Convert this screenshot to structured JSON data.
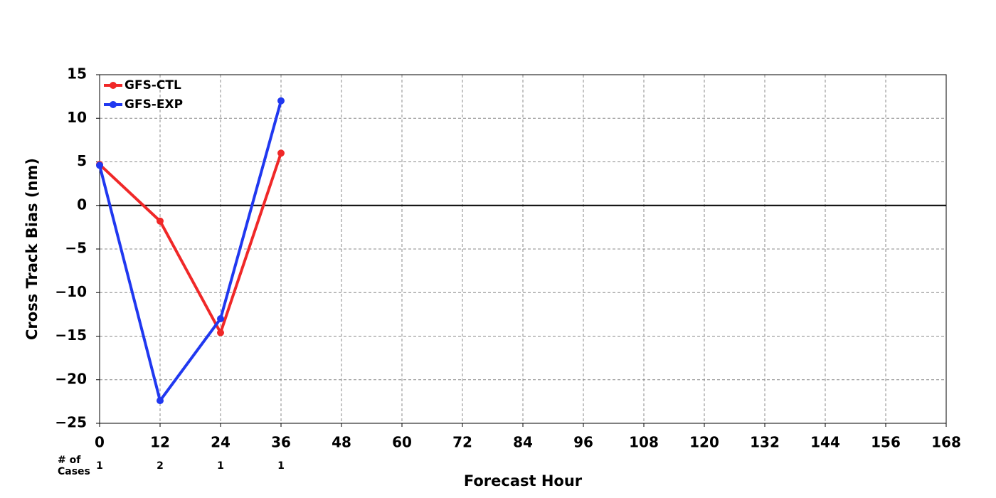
{
  "chart_data": {
    "type": "line",
    "xlabel": "Forecast Hour",
    "ylabel": "Cross Track Bias (nm)",
    "x": [
      0,
      12,
      24,
      36
    ],
    "series": [
      {
        "name": "GFS-CTL",
        "color": "#f02828",
        "values": [
          4.7,
          -1.8,
          -14.6,
          6.0
        ]
      },
      {
        "name": "GFS-EXP",
        "color": "#2038f0",
        "values": [
          4.6,
          -22.4,
          -13.0,
          12.0
        ]
      }
    ],
    "xlim": [
      0,
      168
    ],
    "xticks": [
      0,
      12,
      24,
      36,
      48,
      60,
      72,
      84,
      96,
      108,
      120,
      132,
      144,
      156,
      168
    ],
    "ylim": [
      -25,
      15
    ],
    "yticks": [
      {
        "value": -25,
        "label": "−25"
      },
      {
        "value": -20,
        "label": "−20"
      },
      {
        "value": -15,
        "label": "−15"
      },
      {
        "value": -10,
        "label": "−10"
      },
      {
        "value": -5,
        "label": "−5"
      },
      0,
      5,
      10,
      15
    ],
    "grid": true,
    "zero_line": true,
    "legend": "upper left",
    "cases_label": [
      "# of",
      "Cases"
    ],
    "cases": [
      1,
      2,
      1,
      1
    ]
  }
}
